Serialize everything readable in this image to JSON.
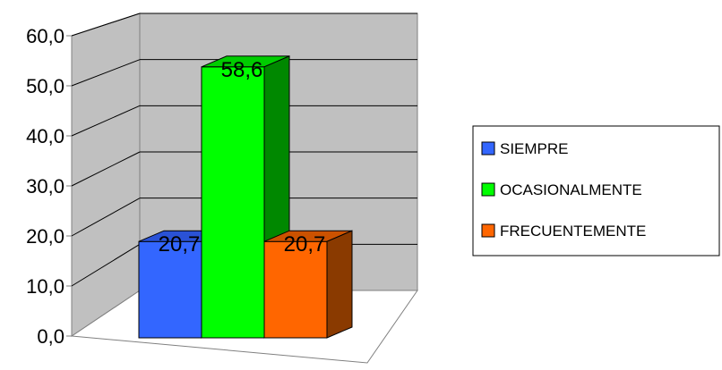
{
  "chart_data": {
    "type": "bar",
    "style": "3d-column",
    "categories": [
      ""
    ],
    "series": [
      {
        "name": "SIEMPRE",
        "values": [
          20.7
        ],
        "label": "20,7",
        "color": "#3366ff",
        "side_color": "#1f3fb0",
        "top_color": "#2a52d6"
      },
      {
        "name": "OCASIONALMENTE",
        "values": [
          58.6
        ],
        "label": "58,6",
        "color": "#00ff00",
        "side_color": "#008800",
        "top_color": "#00cc00"
      },
      {
        "name": "FRECUENTEMENTE",
        "values": [
          20.7
        ],
        "label": "20,7",
        "color": "#ff6600",
        "side_color": "#8a3a00",
        "top_color": "#cc5200"
      }
    ],
    "y_ticks": [
      {
        "value": 0,
        "label": "0,0"
      },
      {
        "value": 10,
        "label": "10,0"
      },
      {
        "value": 20,
        "label": "20,0"
      },
      {
        "value": 30,
        "label": "30,0"
      },
      {
        "value": 40,
        "label": "40,0"
      },
      {
        "value": 50,
        "label": "50,0"
      },
      {
        "value": 60,
        "label": "60,0"
      }
    ],
    "ylim": [
      0,
      60
    ],
    "grid": true,
    "legend_position": "right",
    "wall_color": "#c0c0c0",
    "floor_color": "#ffffff"
  }
}
